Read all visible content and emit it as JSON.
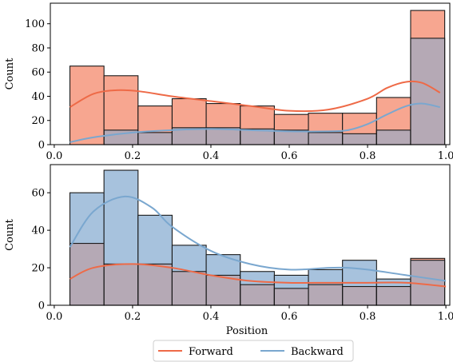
{
  "colors": {
    "forward_line": "#ee6a47",
    "forward_fill": "#f7a690",
    "backward_line": "#7aa7cf",
    "backward_fill": "#a7c2dd",
    "overlap_fill": "#b5a9b5",
    "edge": "#1a1a1a"
  },
  "chart_data": [
    {
      "type": "bar",
      "subtype": "histogram-with-kde",
      "xlabel": "",
      "ylabel": "Count",
      "xlim": [
        -0.01,
        1.01
      ],
      "ylim": [
        0,
        117
      ],
      "xticks": [
        0.0,
        0.2,
        0.4,
        0.6,
        0.8,
        1.0
      ],
      "xtick_labels": [
        "0.0",
        "0.2",
        "0.4",
        "0.6",
        "0.8",
        "1.0"
      ],
      "yticks": [
        0,
        20,
        40,
        60,
        80,
        100
      ],
      "ytick_labels": [
        "0",
        "20",
        "40",
        "60",
        "80",
        "100"
      ],
      "bin_edges": [
        0.04,
        0.127,
        0.214,
        0.301,
        0.388,
        0.475,
        0.562,
        0.649,
        0.736,
        0.823,
        0.91,
        0.997
      ],
      "series": [
        {
          "name": "Forward",
          "values": [
            65,
            57,
            32,
            38,
            34,
            32,
            25,
            26,
            26,
            39,
            111
          ],
          "kde_x": [
            0.04,
            0.1,
            0.16,
            0.22,
            0.3,
            0.4,
            0.5,
            0.6,
            0.7,
            0.8,
            0.85,
            0.9,
            0.94,
            0.985
          ],
          "kde_y": [
            31,
            42,
            45,
            44,
            40,
            36,
            32,
            28,
            29,
            38,
            47,
            52,
            51,
            43
          ]
        },
        {
          "name": "Backward",
          "values": [
            0,
            12,
            10,
            14,
            14,
            13,
            12,
            10,
            9,
            12,
            88
          ],
          "kde_x": [
            0.04,
            0.1,
            0.2,
            0.3,
            0.4,
            0.5,
            0.6,
            0.7,
            0.75,
            0.8,
            0.85,
            0.9,
            0.94,
            0.985
          ],
          "kde_y": [
            2,
            6,
            10,
            12,
            13,
            12,
            11,
            11,
            12,
            17,
            25,
            32,
            34,
            31
          ]
        }
      ]
    },
    {
      "type": "bar",
      "subtype": "histogram-with-kde",
      "xlabel": "Position",
      "ylabel": "Count",
      "xlim": [
        -0.01,
        1.01
      ],
      "ylim": [
        0,
        75
      ],
      "xticks": [
        0.0,
        0.2,
        0.4,
        0.6,
        0.8,
        1.0
      ],
      "xtick_labels": [
        "0.0",
        "0.2",
        "0.4",
        "0.6",
        "0.8",
        "1.0"
      ],
      "yticks": [
        0,
        20,
        40,
        60
      ],
      "ytick_labels": [
        "0",
        "20",
        "40",
        "60"
      ],
      "bin_edges": [
        0.04,
        0.127,
        0.214,
        0.301,
        0.388,
        0.475,
        0.562,
        0.649,
        0.736,
        0.823,
        0.91,
        0.997
      ],
      "series": [
        {
          "name": "Forward",
          "values": [
            33,
            22,
            22,
            18,
            16,
            11,
            9,
            11,
            10,
            10,
            25
          ],
          "kde_x": [
            0.04,
            0.1,
            0.2,
            0.3,
            0.4,
            0.5,
            0.6,
            0.7,
            0.8,
            0.9,
            1.0
          ],
          "kde_y": [
            14,
            20,
            22,
            20,
            16,
            13,
            12,
            12,
            12,
            12,
            10
          ]
        },
        {
          "name": "Backward",
          "values": [
            60,
            72,
            48,
            32,
            27,
            18,
            16,
            19,
            24,
            14,
            24
          ],
          "kde_x": [
            0.04,
            0.1,
            0.18,
            0.25,
            0.3,
            0.4,
            0.5,
            0.6,
            0.7,
            0.75,
            0.8,
            0.9,
            1.0
          ],
          "kde_y": [
            31,
            50,
            58,
            52,
            42,
            29,
            22,
            19,
            20,
            20,
            19,
            16,
            13
          ]
        }
      ]
    }
  ],
  "legend": {
    "placement": "bottom-center",
    "entries": [
      {
        "label": "Forward",
        "color_key": "forward_line"
      },
      {
        "label": "Backward",
        "color_key": "backward_line"
      }
    ]
  }
}
